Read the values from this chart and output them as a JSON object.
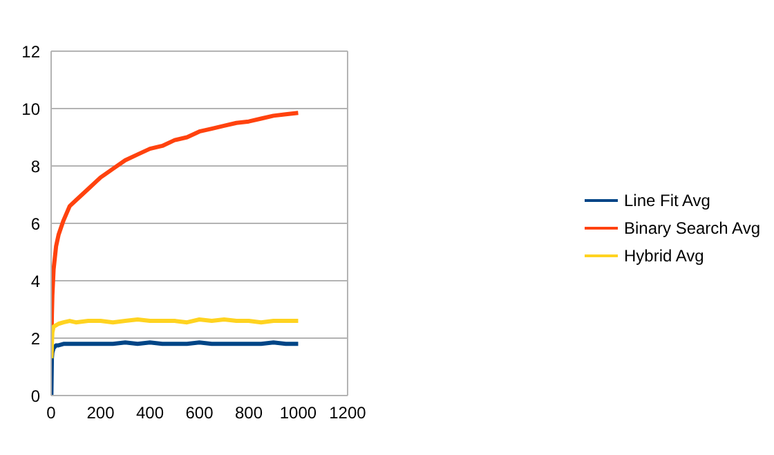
{
  "chart_data": {
    "type": "line",
    "x": [
      1,
      3,
      5,
      10,
      20,
      30,
      50,
      75,
      100,
      150,
      200,
      250,
      300,
      350,
      400,
      450,
      500,
      550,
      600,
      650,
      700,
      750,
      800,
      850,
      900,
      950,
      1000
    ],
    "series": [
      {
        "name": "Line Fit Avg",
        "color": "#004586",
        "values": [
          0,
          1.3,
          1.5,
          1.65,
          1.75,
          1.75,
          1.8,
          1.8,
          1.8,
          1.8,
          1.8,
          1.8,
          1.85,
          1.8,
          1.85,
          1.8,
          1.8,
          1.8,
          1.85,
          1.8,
          1.8,
          1.8,
          1.8,
          1.8,
          1.85,
          1.8,
          1.8
        ]
      },
      {
        "name": "Binary Search Avg",
        "color": "#ff420e",
        "values": [
          1.4,
          2.8,
          3.5,
          4.4,
          5.2,
          5.6,
          6.1,
          6.6,
          6.8,
          7.2,
          7.6,
          7.9,
          8.2,
          8.4,
          8.6,
          8.7,
          8.9,
          9.0,
          9.2,
          9.3,
          9.4,
          9.5,
          9.55,
          9.65,
          9.75,
          9.8,
          9.85
        ]
      },
      {
        "name": "Hybrid Avg",
        "color": "#ffd320",
        "values": [
          1.3,
          1.8,
          2.2,
          2.4,
          2.45,
          2.5,
          2.55,
          2.6,
          2.55,
          2.6,
          2.6,
          2.55,
          2.6,
          2.65,
          2.6,
          2.6,
          2.6,
          2.55,
          2.65,
          2.6,
          2.65,
          2.6,
          2.6,
          2.55,
          2.6,
          2.6,
          2.6
        ]
      }
    ],
    "xlim": [
      0,
      1200
    ],
    "xticks": [
      0,
      200,
      400,
      600,
      800,
      1000,
      1200
    ],
    "ylim": [
      0,
      12
    ],
    "yticks": [
      0,
      2,
      4,
      6,
      8,
      10,
      12
    ],
    "grid": "y",
    "legend": "right",
    "marker": "none",
    "line_style": "solid"
  }
}
